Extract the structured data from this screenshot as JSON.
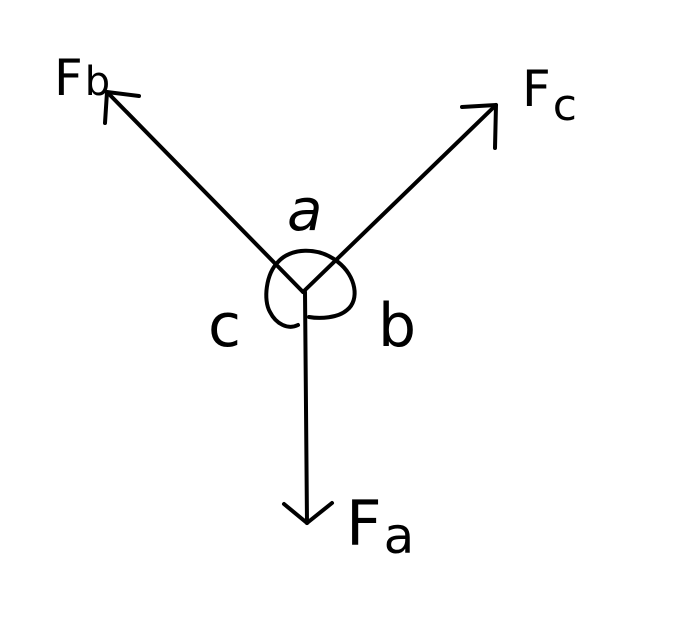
{
  "forces": {
    "fa": {
      "letter": "F",
      "subscript": "a"
    },
    "fb": {
      "letter": "F",
      "subscript": "b"
    },
    "fc": {
      "letter": "F",
      "subscript": "c"
    }
  },
  "angles": {
    "a": "a",
    "b": "b",
    "c": "c"
  },
  "colors": {
    "ink": "#000000",
    "background": "#ffffff"
  }
}
